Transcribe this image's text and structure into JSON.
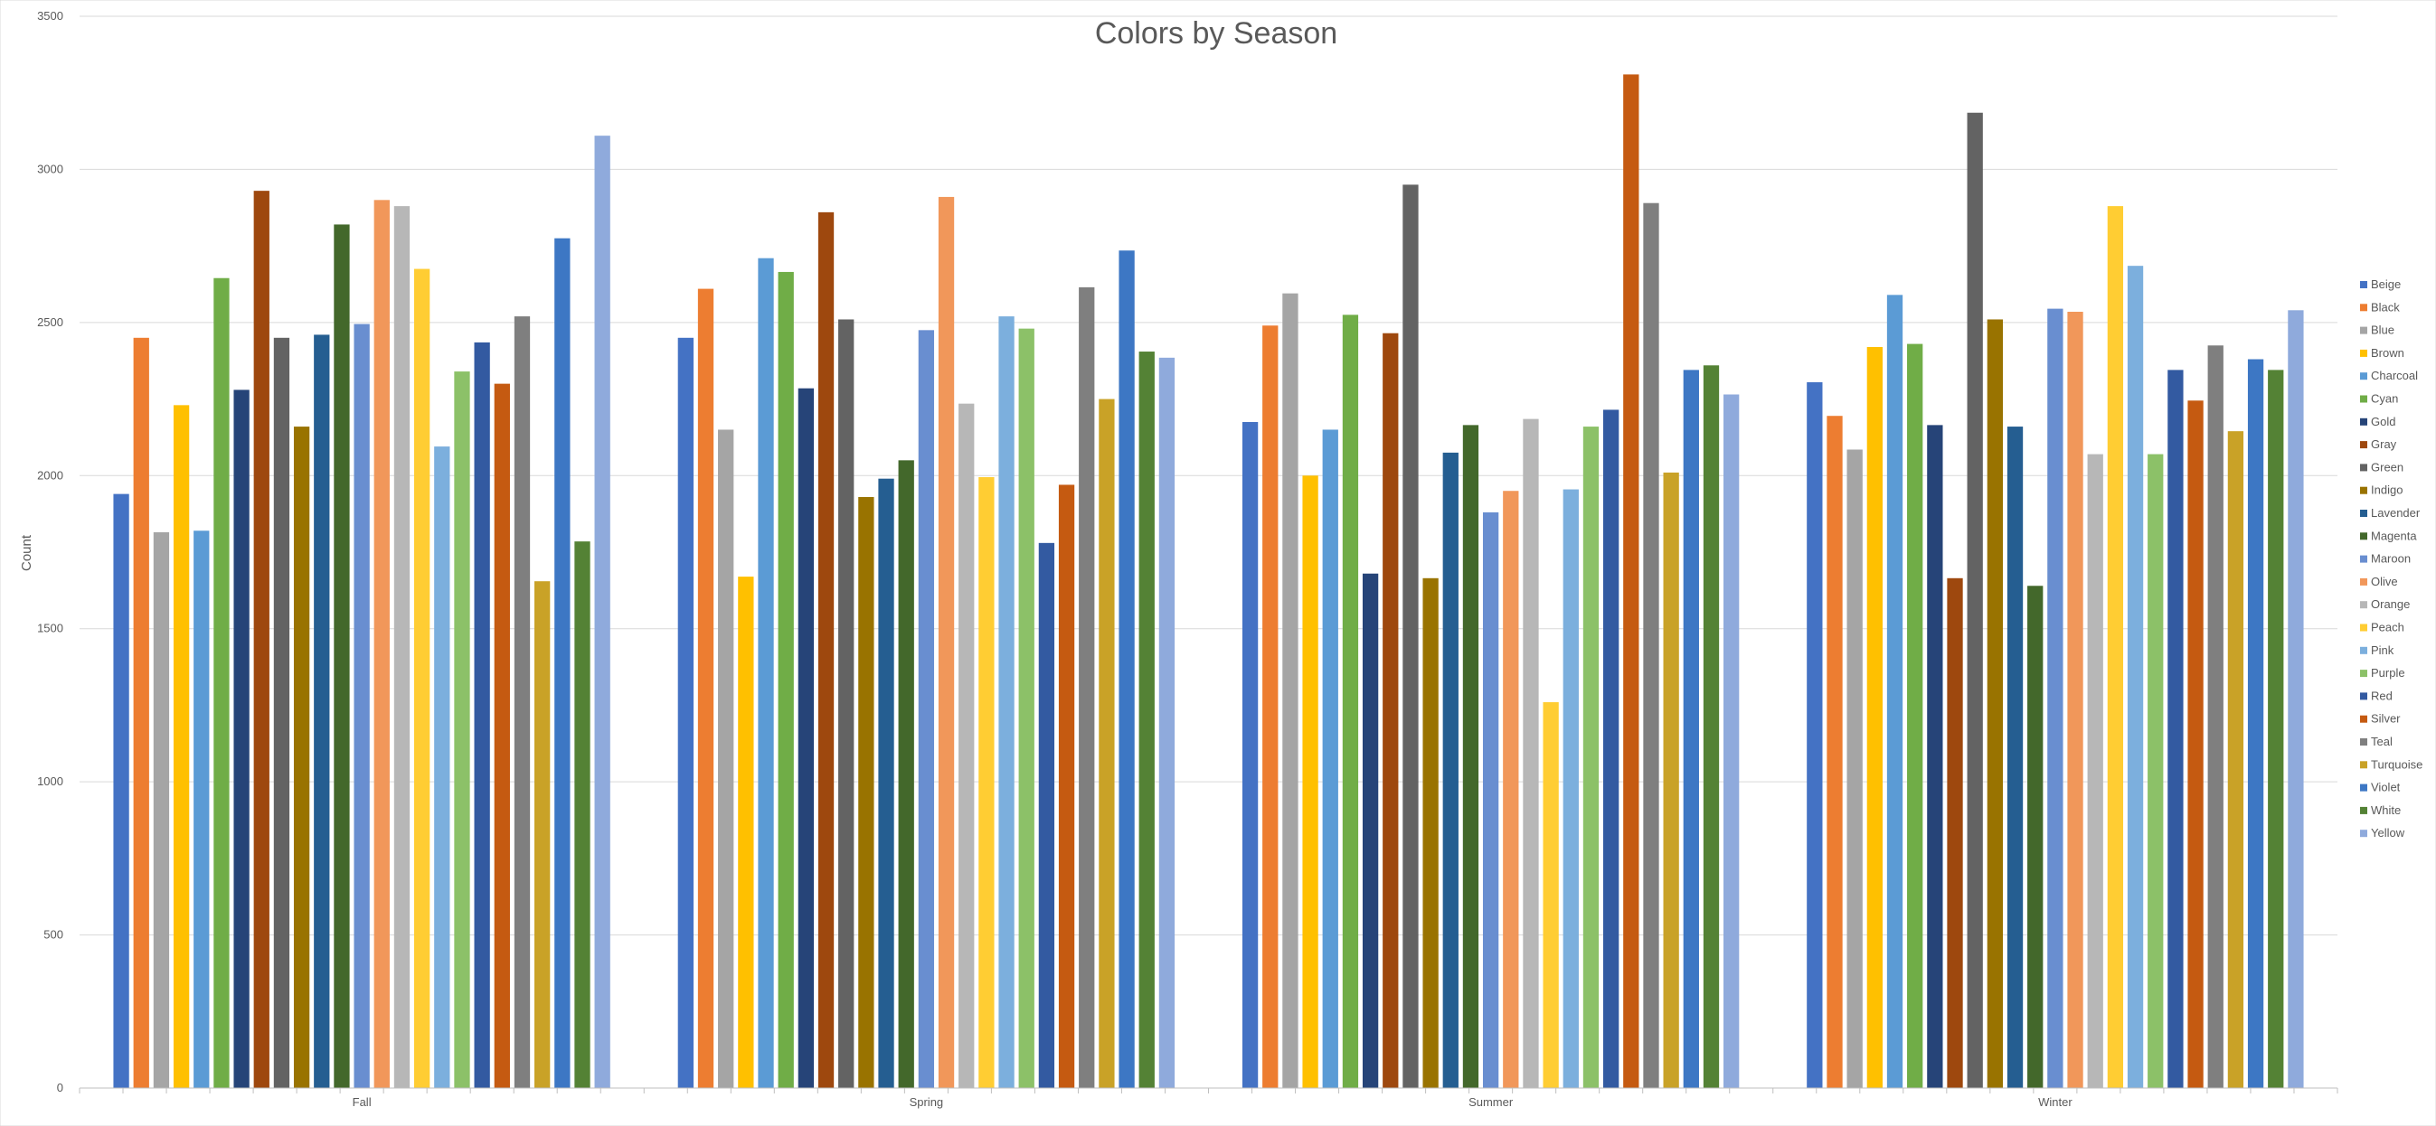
{
  "chart_data": {
    "type": "bar",
    "title": "Colors by Season",
    "xlabel": "",
    "ylabel": "Count",
    "ylim": [
      0,
      3500
    ],
    "yticks": [
      0,
      500,
      1000,
      1500,
      2000,
      2500,
      3000,
      3500
    ],
    "grid": true,
    "legend_position": "right",
    "categories": [
      "Fall",
      "Spring",
      "Summer",
      "Winter"
    ],
    "series": [
      {
        "name": "Beige",
        "color": "#4472C4",
        "values": [
          1940,
          2450,
          2175,
          2305
        ]
      },
      {
        "name": "Black",
        "color": "#ED7D31",
        "values": [
          2450,
          2610,
          2490,
          2195
        ]
      },
      {
        "name": "Blue",
        "color": "#A5A5A5",
        "values": [
          1815,
          2150,
          2595,
          2085
        ]
      },
      {
        "name": "Brown",
        "color": "#FFC000",
        "values": [
          2230,
          1670,
          2000,
          2420
        ]
      },
      {
        "name": "Charcoal",
        "color": "#5B9BD5",
        "values": [
          1820,
          2710,
          2150,
          2590
        ]
      },
      {
        "name": "Cyan",
        "color": "#70AD47",
        "values": [
          2645,
          2665,
          2525,
          2430
        ]
      },
      {
        "name": "Gold",
        "color": "#264478",
        "values": [
          2280,
          2285,
          1680,
          2165
        ]
      },
      {
        "name": "Gray",
        "color": "#9E480E",
        "values": [
          2930,
          2860,
          2465,
          1665
        ]
      },
      {
        "name": "Green",
        "color": "#636363",
        "values": [
          2450,
          2510,
          2950,
          3185
        ]
      },
      {
        "name": "Indigo",
        "color": "#997300",
        "values": [
          2160,
          1930,
          1665,
          2510
        ]
      },
      {
        "name": "Lavender",
        "color": "#255E91",
        "values": [
          2460,
          1990,
          2075,
          2160
        ]
      },
      {
        "name": "Magenta",
        "color": "#43682B",
        "values": [
          2820,
          2050,
          2165,
          1640
        ]
      },
      {
        "name": "Maroon",
        "color": "#698ED0",
        "values": [
          2495,
          2475,
          1880,
          2545
        ]
      },
      {
        "name": "Olive",
        "color": "#F1975A",
        "values": [
          2900,
          2910,
          1950,
          2535
        ]
      },
      {
        "name": "Orange",
        "color": "#B7B7B7",
        "values": [
          2880,
          2235,
          2185,
          2070
        ]
      },
      {
        "name": "Peach",
        "color": "#FFCD33",
        "values": [
          2675,
          1995,
          1260,
          2880
        ]
      },
      {
        "name": "Pink",
        "color": "#7CAFDD",
        "values": [
          2095,
          2520,
          1955,
          2685
        ]
      },
      {
        "name": "Purple",
        "color": "#8CC168",
        "values": [
          2340,
          2480,
          2160,
          2070
        ]
      },
      {
        "name": "Red",
        "color": "#335AA1",
        "values": [
          2435,
          1780,
          2215,
          2345
        ]
      },
      {
        "name": "Silver",
        "color": "#C55A11",
        "values": [
          2300,
          1970,
          3310,
          2245
        ]
      },
      {
        "name": "Teal",
        "color": "#7F7F7F",
        "values": [
          2520,
          2615,
          2890,
          2425
        ]
      },
      {
        "name": "Turquoise",
        "color": "#C9A227",
        "values": [
          1655,
          2250,
          2010,
          2145
        ]
      },
      {
        "name": "Violet",
        "color": "#3D77C4",
        "values": [
          2775,
          2735,
          2345,
          2380
        ]
      },
      {
        "name": "White",
        "color": "#548235",
        "values": [
          1785,
          2405,
          2360,
          2345
        ]
      },
      {
        "name": "Yellow",
        "color": "#8FAADC",
        "values": [
          3110,
          2385,
          2265,
          2540
        ]
      }
    ]
  }
}
